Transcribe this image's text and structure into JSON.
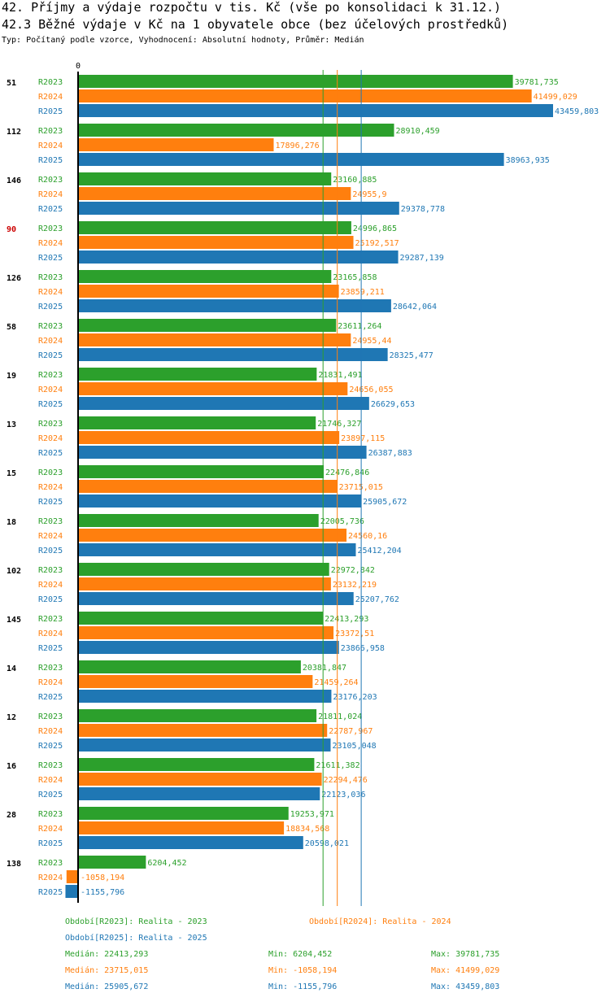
{
  "header": {
    "title1": "42. Příjmy a výdaje rozpočtu v tis. Kč (vše po konsolidaci k 31.12.)",
    "title2": "42.3 Běžné výdaje v Kč na 1 obyvatele obce (bez účelových prostředků)",
    "subtitle": "Typ: Počítaný podle vzorce, Vyhodnocení: Absolutní hodnoty, Průměr: Medián"
  },
  "chart_data": {
    "type": "bar",
    "orientation": "horizontal",
    "zero_label": "0",
    "xlim": [
      0,
      43459.803
    ],
    "highlight_group": "90",
    "highlight_color": "#cc0000",
    "groups": [
      "51",
      "112",
      "146",
      "90",
      "126",
      "58",
      "19",
      "13",
      "15",
      "18",
      "102",
      "145",
      "14",
      "12",
      "16",
      "28",
      "138"
    ],
    "series": [
      {
        "name": "R2023",
        "color": "#2ca02c",
        "values": [
          39781.735,
          28910.459,
          23160.885,
          24996.865,
          23165.858,
          23611.264,
          21831.491,
          21746.327,
          22476.846,
          22005.736,
          22972.842,
          22413.293,
          20381.847,
          21811.024,
          21611.382,
          19253.971,
          6204.452
        ],
        "labels": [
          "39781,735",
          "28910,459",
          "23160,885",
          "24996,865",
          "23165,858",
          "23611,264",
          "21831,491",
          "21746,327",
          "22476,846",
          "22005,736",
          "22972,842",
          "22413,293",
          "20381,847",
          "21811,024",
          "21611,382",
          "19253,971",
          "6204,452"
        ]
      },
      {
        "name": "R2024",
        "color": "#ff7f0e",
        "values": [
          41499.029,
          17896.276,
          24955.9,
          25192.517,
          23859.211,
          24955.44,
          24656.055,
          23897.115,
          23715.015,
          24560.16,
          23132.219,
          23372.51,
          21459.264,
          22787.967,
          22294.476,
          18834.568,
          -1058.194
        ],
        "labels": [
          "41499,029",
          "17896,276",
          "24955,9",
          "25192,517",
          "23859,211",
          "24955,44",
          "24656,055",
          "23897,115",
          "23715,015",
          "24560,16",
          "23132,219",
          "23372,51",
          "21459,264",
          "22787,967",
          "22294,476",
          "18834,568",
          "-1058,194"
        ]
      },
      {
        "name": "R2025",
        "color": "#1f77b4",
        "values": [
          43459.803,
          38963.935,
          29378.778,
          29287.139,
          28642.064,
          28325.477,
          26629.653,
          26387.883,
          25905.672,
          25412.204,
          25207.762,
          23866.958,
          23176.203,
          23105.048,
          22123.036,
          20598.021,
          -1155.796
        ],
        "labels": [
          "43459,803",
          "38963,935",
          "29378,778",
          "29287,139",
          "28642,064",
          "28325,477",
          "26629,653",
          "26387,883",
          "25905,672",
          "25412,204",
          "25207,762",
          "23866,958",
          "23176,203",
          "23105,048",
          "22123,036",
          "20598,021",
          "-1155,796"
        ]
      }
    ],
    "medians": [
      22413.293,
      23715.015,
      25905.672
    ]
  },
  "legend": {
    "series_labels": [
      "Období[R2023]: Realita - 2023",
      "Období[R2024]: Realita - 2024",
      "Období[R2025]: Realita - 2025"
    ],
    "stats": [
      {
        "median": "Medián: 22413,293",
        "min": "Min: 6204,452",
        "max": "Max: 39781,735",
        "color": "#2ca02c"
      },
      {
        "median": "Medián: 23715,015",
        "min": "Min: -1058,194",
        "max": "Max: 41499,029",
        "color": "#ff7f0e"
      },
      {
        "median": "Medián: 25905,672",
        "min": "Min: -1155,796",
        "max": "Max: 43459,803",
        "color": "#1f77b4"
      }
    ]
  }
}
